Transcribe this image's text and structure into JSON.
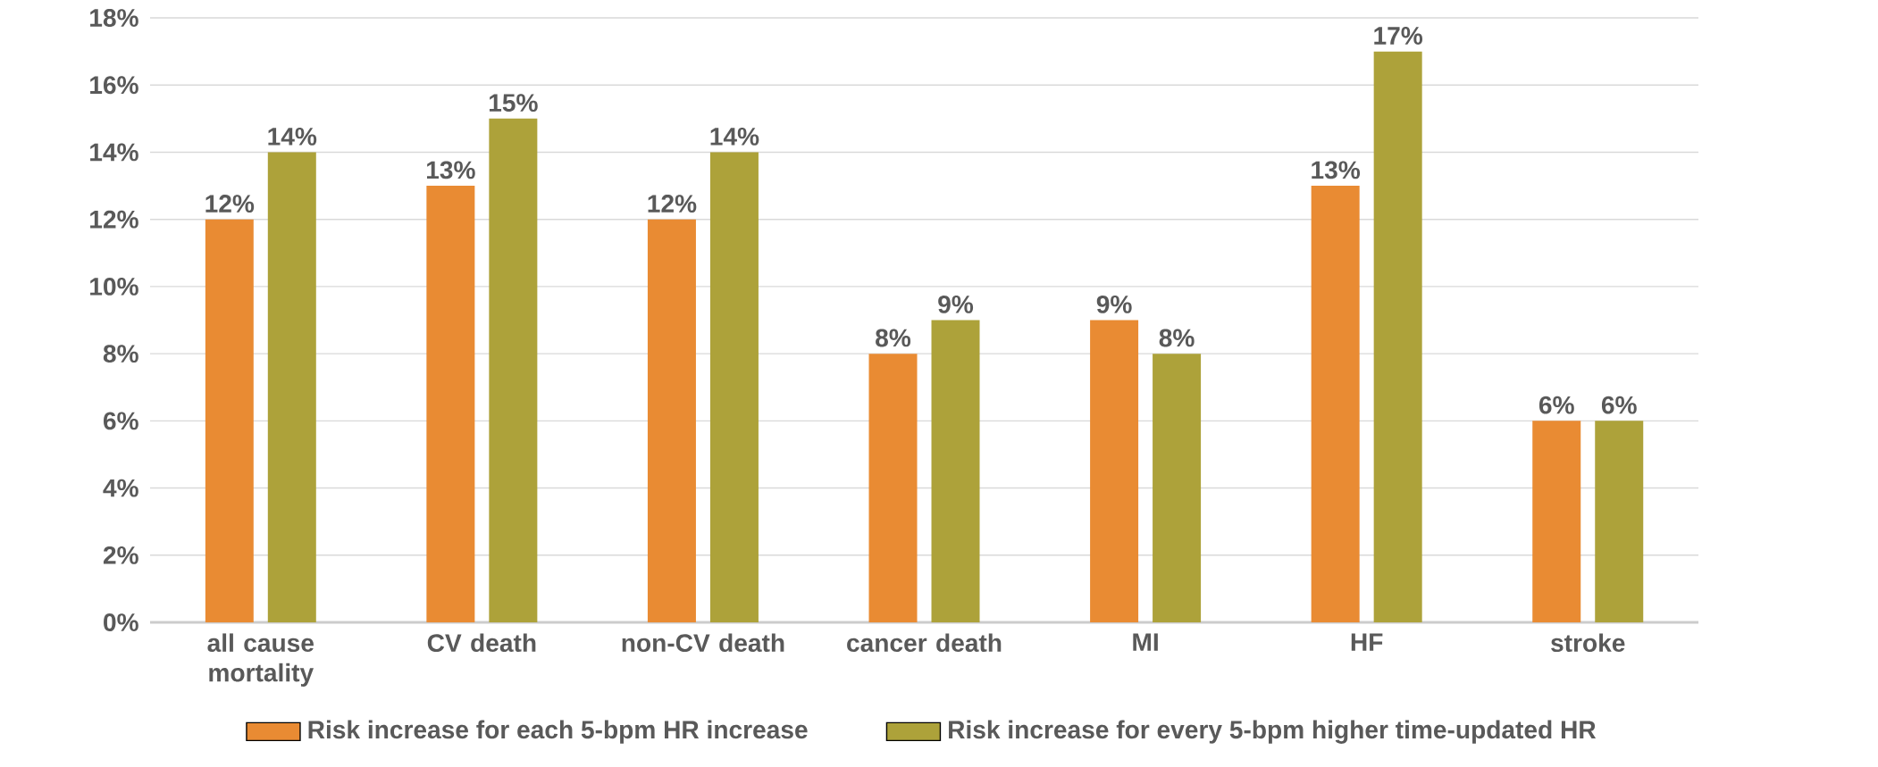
{
  "chart_data": {
    "type": "bar",
    "categories": [
      "all cause mortality",
      "CV death",
      "non-CV death",
      "cancer death",
      "MI",
      "HF",
      "stroke"
    ],
    "series": [
      {
        "name": "Risk increase for each 5-bpm HR increase",
        "color": "#e98b33",
        "values": [
          12,
          13,
          12,
          8,
          9,
          13,
          6
        ],
        "value_labels": [
          "12%",
          "13%",
          "12%",
          "8%",
          "9%",
          "13%",
          "6%"
        ]
      },
      {
        "name": "Risk increase for every 5-bpm higher time-updated HR",
        "color": "#ada23a",
        "values": [
          14,
          15,
          14,
          9,
          8,
          17,
          6
        ],
        "value_labels": [
          "14%",
          "15%",
          "14%",
          "9%",
          "8%",
          "17%",
          "6%"
        ]
      }
    ],
    "ylim": [
      0,
      18
    ],
    "yticks": [
      {
        "value": 0,
        "label": "0%"
      },
      {
        "value": 2,
        "label": "2%"
      },
      {
        "value": 4,
        "label": "4%"
      },
      {
        "value": 6,
        "label": "6%"
      },
      {
        "value": 8,
        "label": "8%"
      },
      {
        "value": 10,
        "label": "10%"
      },
      {
        "value": 12,
        "label": "12%"
      },
      {
        "value": 14,
        "label": "14%"
      },
      {
        "value": 16,
        "label": "16%"
      },
      {
        "value": 18,
        "label": "18%"
      }
    ],
    "grid": "y",
    "legend": "bottom"
  }
}
